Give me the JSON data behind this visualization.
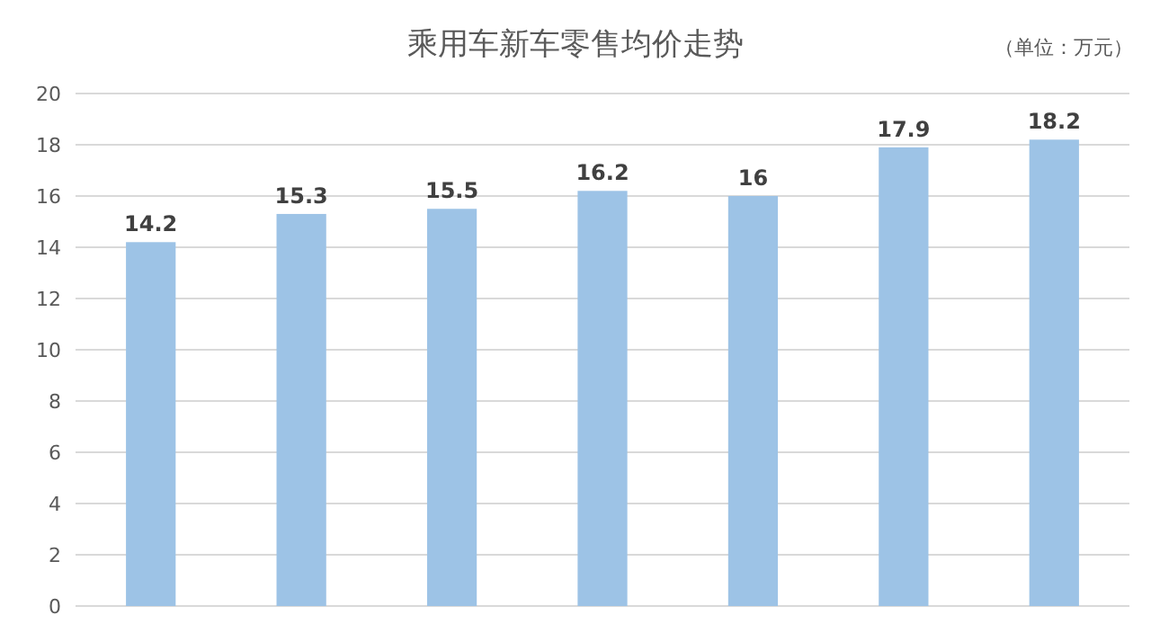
{
  "chart_data": {
    "type": "bar",
    "title": "乘用车新车零售均价走势",
    "annotations": [
      "（单位：万元）"
    ],
    "categories": [
      null,
      null,
      null,
      null,
      null,
      null,
      null
    ],
    "values": [
      14.2,
      15.3,
      15.5,
      16.2,
      16,
      17.9,
      18.2
    ],
    "color": "#9dc3e6",
    "data_labels": true,
    "grid": "y",
    "ylim": [
      0,
      20
    ],
    "yticks": [
      0,
      2,
      4,
      6,
      8,
      10,
      12,
      14,
      16,
      18,
      20
    ]
  }
}
